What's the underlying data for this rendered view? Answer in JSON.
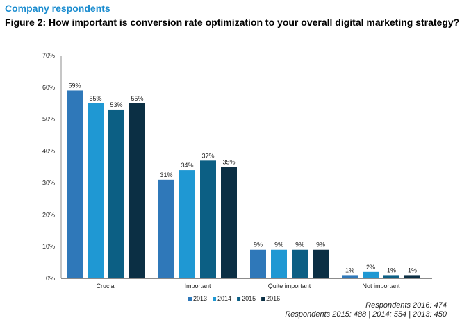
{
  "header": {
    "section_label": "Company respondents",
    "figure_title": "Figure 2: How important is conversion rate optimization to your overall digital marketing strategy?"
  },
  "footnotes": {
    "line1": "Respondents 2016: 474",
    "line2": "Respondents 2015: 488 | 2014: 554 | 2013: 450"
  },
  "chart_data": {
    "type": "bar",
    "categories": [
      "Crucial",
      "Important",
      "Quite important",
      "Not important"
    ],
    "series": [
      {
        "name": "2013",
        "color": "#2f78b9",
        "values": [
          59,
          31,
          9,
          1
        ]
      },
      {
        "name": "2014",
        "color": "#1f98d3",
        "values": [
          55,
          34,
          9,
          2
        ]
      },
      {
        "name": "2015",
        "color": "#0c5f84",
        "values": [
          53,
          37,
          9,
          1
        ]
      },
      {
        "name": "2016",
        "color": "#0b2f44",
        "values": [
          55,
          35,
          9,
          1
        ]
      }
    ],
    "value_labels": [
      [
        "59%",
        "31%",
        "9%",
        "1%"
      ],
      [
        "55%",
        "34%",
        "9%",
        "2%"
      ],
      [
        "53%",
        "37%",
        "9%",
        "1%"
      ],
      [
        "55%",
        "35%",
        "9%",
        "1%"
      ]
    ],
    "y_ticks": [
      "0%",
      "10%",
      "20%",
      "30%",
      "40%",
      "50%",
      "60%",
      "70%"
    ],
    "ylim": [
      0,
      70
    ],
    "unit": "%",
    "legend_position": "bottom",
    "grid": false
  }
}
